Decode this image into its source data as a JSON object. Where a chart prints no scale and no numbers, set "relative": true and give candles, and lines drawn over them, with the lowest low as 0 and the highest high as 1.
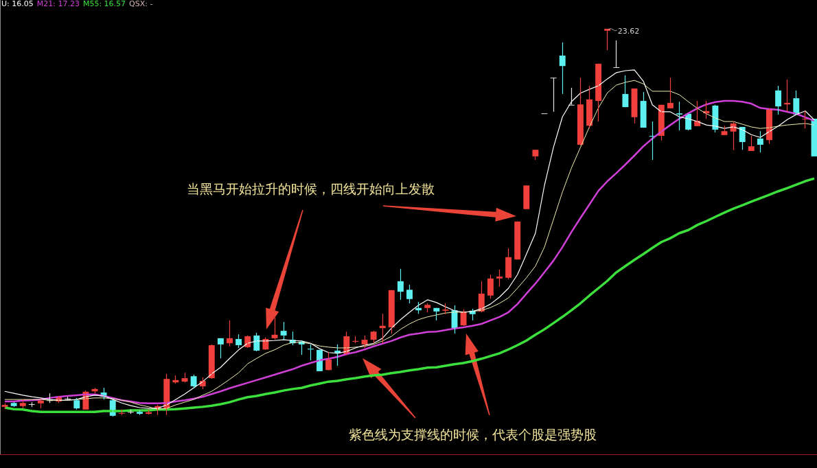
{
  "chart_data": {
    "type": "candlestick",
    "relative": true,
    "categories": [
      null,
      null,
      null,
      null,
      null,
      null,
      null,
      null,
      null,
      null,
      null,
      null,
      null,
      null,
      null,
      null,
      null,
      null,
      null,
      null,
      null,
      null,
      null,
      null,
      null,
      null,
      null,
      null,
      null,
      null,
      null,
      null,
      null,
      null,
      null,
      null,
      null,
      null,
      null,
      null,
      null,
      null,
      null,
      null,
      null,
      null,
      null,
      null,
      null,
      null,
      null,
      null,
      null,
      null,
      null,
      null,
      null,
      null,
      null,
      null,
      null,
      null,
      null,
      null,
      null,
      null,
      null,
      null,
      null,
      null,
      null,
      null,
      null,
      null,
      null,
      null,
      null,
      null,
      null,
      null,
      null,
      null,
      null,
      null,
      null,
      null,
      null,
      null,
      null,
      null,
      null
    ],
    "ohlc": [
      [
        0.025,
        0.034,
        0.019,
        0.03
      ],
      [
        0.035,
        0.037,
        0.025,
        0.027
      ],
      [
        0.027,
        0.044,
        0.021,
        0.035
      ],
      [
        0.032,
        0.037,
        0.025,
        0.032
      ],
      [
        0.034,
        0.044,
        0.021,
        0.041
      ],
      [
        0.042,
        0.06,
        0.035,
        0.042
      ],
      [
        0.039,
        0.053,
        0.035,
        0.051
      ],
      [
        0.046,
        0.051,
        0.042,
        0.046
      ],
      [
        0.042,
        0.048,
        0.018,
        0.021
      ],
      [
        0.018,
        0.067,
        0.018,
        0.064
      ],
      [
        0.065,
        0.074,
        0.06,
        0.071
      ],
      [
        0.062,
        0.074,
        0.044,
        0.051
      ],
      [
        0.042,
        0.044,
        0,
        0.002
      ],
      [
        0.009,
        0.018,
        0.004,
        0.009
      ],
      [
        0.012,
        0.018,
        0.007,
        0.012
      ],
      [
        0.012,
        0.016,
        0.004,
        0.007
      ],
      [
        0.007,
        0.018,
        0.005,
        0.011
      ],
      [
        0.021,
        0.03,
        0.004,
        0.027
      ],
      [
        0.016,
        0.11,
        0.004,
        0.097
      ],
      [
        0.088,
        0.106,
        0.085,
        0.094
      ],
      [
        0.09,
        0.113,
        0.088,
        0.099
      ],
      [
        0.104,
        0.108,
        0.073,
        0.078
      ],
      [
        0.078,
        0.101,
        0.071,
        0.092
      ],
      [
        0.099,
        0.186,
        0.097,
        0.184
      ],
      [
        0.202,
        0.202,
        0.15,
        0.186
      ],
      [
        0.189,
        0.248,
        0.181,
        0.202
      ],
      [
        0.2,
        0.212,
        0.177,
        0.184
      ],
      [
        0.179,
        0.209,
        0.177,
        0.207
      ],
      [
        0.209,
        0.216,
        0.168,
        0.17
      ],
      [
        0.173,
        0.204,
        0.172,
        0.2
      ],
      [
        0.202,
        0.255,
        0.198,
        0.211
      ],
      [
        0.221,
        0.244,
        0.198,
        0.209
      ],
      [
        0.198,
        0.219,
        0.184,
        0.189
      ],
      [
        0.193,
        0.195,
        0.159,
        0.186
      ],
      [
        0.175,
        0.186,
        0.145,
        0.173
      ],
      [
        0.172,
        0.172,
        0.117,
        0.117
      ],
      [
        0.12,
        0.166,
        0.119,
        0.147
      ],
      [
        0.17,
        0.186,
        0.131,
        0.163
      ],
      [
        0.161,
        0.219,
        0.158,
        0.207
      ],
      [
        0.193,
        0.207,
        0.189,
        0.195
      ],
      [
        0.186,
        0.209,
        0.177,
        0.198
      ],
      [
        0.198,
        0.221,
        0.189,
        0.219
      ],
      [
        0.228,
        0.265,
        0.189,
        0.234
      ],
      [
        0.23,
        0.326,
        0.214,
        0.326
      ],
      [
        0.349,
        0.381,
        0.301,
        0.322
      ],
      [
        0.327,
        0.34,
        0.292,
        0.303
      ],
      [
        0.28,
        0.296,
        0.265,
        0.274
      ],
      [
        0.28,
        0.292,
        0.269,
        0.288
      ],
      [
        0.28,
        0.28,
        0.248,
        0.271
      ],
      [
        0.273,
        0.292,
        0.264,
        0.276
      ],
      [
        0.274,
        0.287,
        0.214,
        0.228
      ],
      [
        0.235,
        0.276,
        0.234,
        0.271
      ],
      [
        0.273,
        0.278,
        0.248,
        0.264
      ],
      [
        0.271,
        0.349,
        0.269,
        0.317
      ],
      [
        0.312,
        0.366,
        0.304,
        0.356
      ],
      [
        0.356,
        0.379,
        0.335,
        0.361
      ],
      [
        0.358,
        0.434,
        0.354,
        0.411
      ],
      [
        0.405,
        0.503,
        0.405,
        0.503
      ],
      [
        0.535,
        0.596,
        0.535,
        0.596
      ],
      [
        0.671,
        0.688,
        0.662,
        0.688
      ],
      [
        0.782,
        0.782,
        0.782,
        0.782
      ],
      [
        0.874,
        0.874,
        0.786,
        0.874
      ],
      [
        0.931,
        0.965,
        0.832,
        0.904
      ],
      [
        0.804,
        0.848,
        0.804,
        0.804
      ],
      [
        0.701,
        0.874,
        0.699,
        0.805
      ],
      [
        0.75,
        0.853,
        0.743,
        0.818
      ],
      [
        0.814,
        0.91,
        0.761,
        0.91
      ],
      [
        0.995,
        1,
        0.945,
        1
      ],
      [
        0.901,
        0.97,
        0.901,
        0.901
      ],
      [
        0.832,
        0.88,
        0.798,
        0.798
      ],
      [
        0.772,
        0.846,
        0.756,
        0.846
      ],
      [
        0.814,
        0.837,
        0.745,
        0.745
      ],
      [
        0.724,
        0.761,
        0.662,
        0.722
      ],
      [
        0.724,
        0.804,
        0.712,
        0.804
      ],
      [
        0.795,
        0.874,
        0.795,
        0.809
      ],
      [
        0.782,
        0.812,
        0.738,
        0.779
      ],
      [
        0.781,
        0.781,
        0.738,
        0.74
      ],
      [
        0.749,
        0.814,
        0.749,
        0.763
      ],
      [
        0.782,
        0.814,
        0.768,
        0.788
      ],
      [
        0.802,
        0.804,
        0.733,
        0.74
      ],
      [
        0.726,
        0.75,
        0.726,
        0.736
      ],
      [
        0.735,
        0.761,
        0.687,
        0.756
      ],
      [
        0.747,
        0.747,
        0.688,
        0.708
      ],
      [
        0.685,
        0.724,
        0.685,
        0.697
      ],
      [
        0.717,
        0.736,
        0.681,
        0.701
      ],
      [
        0.713,
        0.795,
        0.703,
        0.795
      ],
      [
        0.841,
        0.853,
        0.779,
        0.8
      ],
      [
        0.805,
        0.869,
        0.786,
        0.809
      ],
      [
        0.821,
        0.841,
        0.779,
        0.779
      ],
      [
        0.768,
        0.788,
        0.743,
        0.768
      ],
      [
        0.768,
        0.768,
        0.671,
        0.671
      ]
    ],
    "colors": [
      "#f0403c",
      "#5cf0f0",
      "#f0403c",
      "#e6e6e6",
      "#f0403c",
      "#e6e6e6",
      "#f0403c",
      "#e6e6e6",
      "#5cf0f0",
      "#f0403c",
      "#f0403c",
      "#5cf0f0",
      "#5cf0f0",
      "#f0403c",
      "#e6e6e6",
      "#5cf0f0",
      "#f0403c",
      "#f0403c",
      "#f0403c",
      "#f0403c",
      "#f0403c",
      "#5cf0f0",
      "#f0403c",
      "#f0403c",
      "#5cf0f0",
      "#f0403c",
      "#5cf0f0",
      "#f0403c",
      "#5cf0f0",
      "#f0403c",
      "#f0403c",
      "#5cf0f0",
      "#5cf0f0",
      "#5cf0f0",
      "#5cf0f0",
      "#5cf0f0",
      "#f0403c",
      "#5cf0f0",
      "#f0403c",
      "#f0403c",
      "#f0403c",
      "#f0403c",
      "#f0403c",
      "#f0403c",
      "#5cf0f0",
      "#5cf0f0",
      "#5cf0f0",
      "#f0403c",
      "#5cf0f0",
      "#f0403c",
      "#5cf0f0",
      "#f0403c",
      "#5cf0f0",
      "#f0403c",
      "#f0403c",
      "#f0403c",
      "#f0403c",
      "#f0403c",
      "#f0403c",
      "#f0403c",
      "#e6e6e6",
      "#e6e6e6",
      "#5cf0f0",
      "#e6e6e6",
      "#f0403c",
      "#f0403c",
      "#f0403c",
      "#f0403c",
      "#e6e6e6",
      "#5cf0f0",
      "#f0403c",
      "#5cf0f0",
      "#5cf0f0",
      "#f0403c",
      "#f0403c",
      "#5cf0f0",
      "#5cf0f0",
      "#f0403c",
      "#f0403c",
      "#5cf0f0",
      "#f0403c",
      "#f0403c",
      "#5cf0f0",
      "#f0403c",
      "#5cf0f0",
      "#f0403c",
      "#5cf0f0",
      "#f0403c",
      "#5cf0f0",
      "#f0403c",
      "#5cf0f0"
    ],
    "series": [
      {
        "type": "line",
        "name": "U: 16.05",
        "color": "#ffffff",
        "values": [
          0.065,
          0.06,
          0.055,
          0.051,
          0.048,
          0.044,
          0.042,
          0.042,
          0.044,
          0.051,
          0.055,
          0.053,
          0.044,
          0.035,
          0.028,
          0.023,
          0.021,
          0.021,
          0.03,
          0.044,
          0.058,
          0.074,
          0.09,
          0.11,
          0.127,
          0.15,
          0.172,
          0.189,
          0.195,
          0.195,
          0.196,
          0.198,
          0.196,
          0.195,
          0.189,
          0.175,
          0.165,
          0.163,
          0.168,
          0.177,
          0.184,
          0.189,
          0.202,
          0.228,
          0.25,
          0.269,
          0.287,
          0.301,
          0.294,
          0.283,
          0.273,
          0.269,
          0.271,
          0.278,
          0.29,
          0.308,
          0.331,
          0.366,
          0.419,
          0.473,
          0.596,
          0.694,
          0.773,
          0.812,
          0.834,
          0.844,
          0.853,
          0.871,
          0.887,
          0.892,
          0.894,
          0.865,
          0.804,
          0.786,
          0.786,
          0.773,
          0.768,
          0.761,
          0.752,
          0.749,
          0.743,
          0.747,
          0.74,
          0.727,
          0.72,
          0.735,
          0.749,
          0.766,
          0.779,
          0.788,
          0.765
        ]
      },
      {
        "type": "line",
        "color": "#f2eeb0",
        "values": [
          0.044,
          0.044,
          0.044,
          0.044,
          0.044,
          0.042,
          0.042,
          0.042,
          0.044,
          0.046,
          0.048,
          0.048,
          0.046,
          0.042,
          0.037,
          0.03,
          0.025,
          0.019,
          0.021,
          0.03,
          0.037,
          0.044,
          0.055,
          0.065,
          0.08,
          0.096,
          0.113,
          0.136,
          0.15,
          0.163,
          0.172,
          0.184,
          0.191,
          0.191,
          0.188,
          0.182,
          0.179,
          0.177,
          0.177,
          0.179,
          0.181,
          0.186,
          0.195,
          0.207,
          0.225,
          0.239,
          0.25,
          0.257,
          0.262,
          0.267,
          0.269,
          0.269,
          0.271,
          0.274,
          0.281,
          0.292,
          0.306,
          0.331,
          0.358,
          0.388,
          0.437,
          0.508,
          0.579,
          0.641,
          0.694,
          0.747,
          0.796,
          0.835,
          0.855,
          0.862,
          0.867,
          0.858,
          0.839,
          0.839,
          0.839,
          0.83,
          0.812,
          0.795,
          0.781,
          0.77,
          0.761,
          0.761,
          0.754,
          0.747,
          0.743,
          0.745,
          0.749,
          0.752,
          0.754,
          0.756,
          0.752
        ]
      },
      {
        "type": "line",
        "name": "M21: 17.23",
        "color": "#d040d8",
        "values": [
          0.039,
          0.039,
          0.041,
          0.042,
          0.044,
          0.048,
          0.051,
          0.053,
          0.055,
          0.057,
          0.057,
          0.053,
          0.048,
          0.042,
          0.039,
          0.035,
          0.034,
          0.034,
          0.035,
          0.039,
          0.042,
          0.046,
          0.051,
          0.058,
          0.065,
          0.073,
          0.08,
          0.087,
          0.094,
          0.101,
          0.108,
          0.115,
          0.122,
          0.131,
          0.138,
          0.145,
          0.149,
          0.154,
          0.161,
          0.166,
          0.173,
          0.181,
          0.188,
          0.195,
          0.204,
          0.211,
          0.214,
          0.218,
          0.219,
          0.223,
          0.227,
          0.23,
          0.234,
          0.239,
          0.248,
          0.257,
          0.269,
          0.29,
          0.317,
          0.343,
          0.372,
          0.402,
          0.437,
          0.476,
          0.512,
          0.547,
          0.582,
          0.607,
          0.628,
          0.65,
          0.673,
          0.697,
          0.717,
          0.735,
          0.752,
          0.768,
          0.782,
          0.795,
          0.805,
          0.811,
          0.814,
          0.814,
          0.812,
          0.807,
          0.796,
          0.793,
          0.791,
          0.786,
          0.781,
          0.772,
          0.763
        ]
      },
      {
        "type": "line",
        "name": "M55: 16.57",
        "color": "#3ce03c",
        "values": [
          0.023,
          0.019,
          0.018,
          0.014,
          0.012,
          0.012,
          0.012,
          0.012,
          0.012,
          0.012,
          0.012,
          0.014,
          0.014,
          0.014,
          0.016,
          0.016,
          0.016,
          0.018,
          0.018,
          0.019,
          0.021,
          0.023,
          0.025,
          0.028,
          0.032,
          0.037,
          0.044,
          0.05,
          0.053,
          0.058,
          0.062,
          0.067,
          0.071,
          0.074,
          0.08,
          0.085,
          0.09,
          0.092,
          0.096,
          0.099,
          0.103,
          0.106,
          0.108,
          0.112,
          0.115,
          0.119,
          0.122,
          0.126,
          0.127,
          0.131,
          0.135,
          0.138,
          0.143,
          0.149,
          0.156,
          0.163,
          0.173,
          0.184,
          0.196,
          0.211,
          0.225,
          0.241,
          0.257,
          0.274,
          0.292,
          0.312,
          0.331,
          0.35,
          0.372,
          0.388,
          0.404,
          0.419,
          0.435,
          0.45,
          0.46,
          0.473,
          0.481,
          0.494,
          0.504,
          0.515,
          0.526,
          0.536,
          0.545,
          0.554,
          0.563,
          0.572,
          0.581,
          0.589,
          0.598,
          0.607,
          0.614
        ]
      }
    ],
    "legend": "top left",
    "annotations": [
      "QSX: -",
      "23.62",
      "当黑马开始拉升的时候，四线开始向上发散",
      "紫色线为支撑线的时候，代表个股是强势股"
    ]
  }
}
